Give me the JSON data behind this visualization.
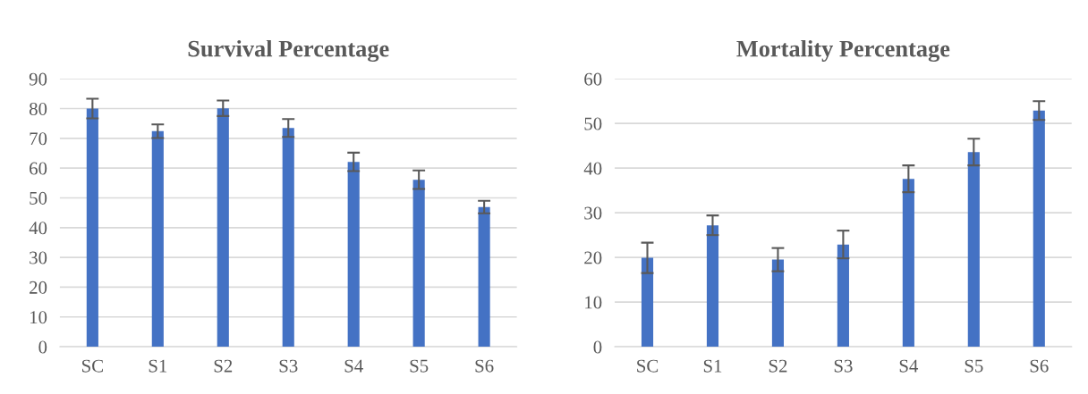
{
  "chart_data": [
    {
      "type": "bar",
      "title": "Survival Percentage",
      "categories": [
        "SC",
        "S1",
        "S2",
        "S3",
        "S4",
        "S5",
        "S6"
      ],
      "color": "#4472c4",
      "values": [
        80.0,
        72.4,
        80.1,
        73.5,
        62.1,
        56.1,
        46.9
      ],
      "errors": [
        3.3,
        2.3,
        2.6,
        3.0,
        3.1,
        3.1,
        2.1
      ],
      "ylim": [
        0,
        90
      ],
      "yticks": [
        0,
        10,
        20,
        30,
        40,
        50,
        60,
        70,
        80,
        90
      ],
      "grid": "y",
      "legend": false
    },
    {
      "type": "bar",
      "title": "Mortality Percentage",
      "categories": [
        "SC",
        "S1",
        "S2",
        "S3",
        "S4",
        "S5",
        "S6"
      ],
      "color": "#4472c4",
      "values": [
        19.9,
        27.2,
        19.5,
        22.9,
        37.6,
        43.6,
        52.9
      ],
      "errors": [
        3.4,
        2.2,
        2.6,
        3.1,
        3.0,
        3.0,
        2.1
      ],
      "ylim": [
        0,
        60
      ],
      "yticks": [
        0,
        10,
        20,
        30,
        40,
        50,
        60
      ],
      "grid": "y",
      "legend": false
    }
  ]
}
